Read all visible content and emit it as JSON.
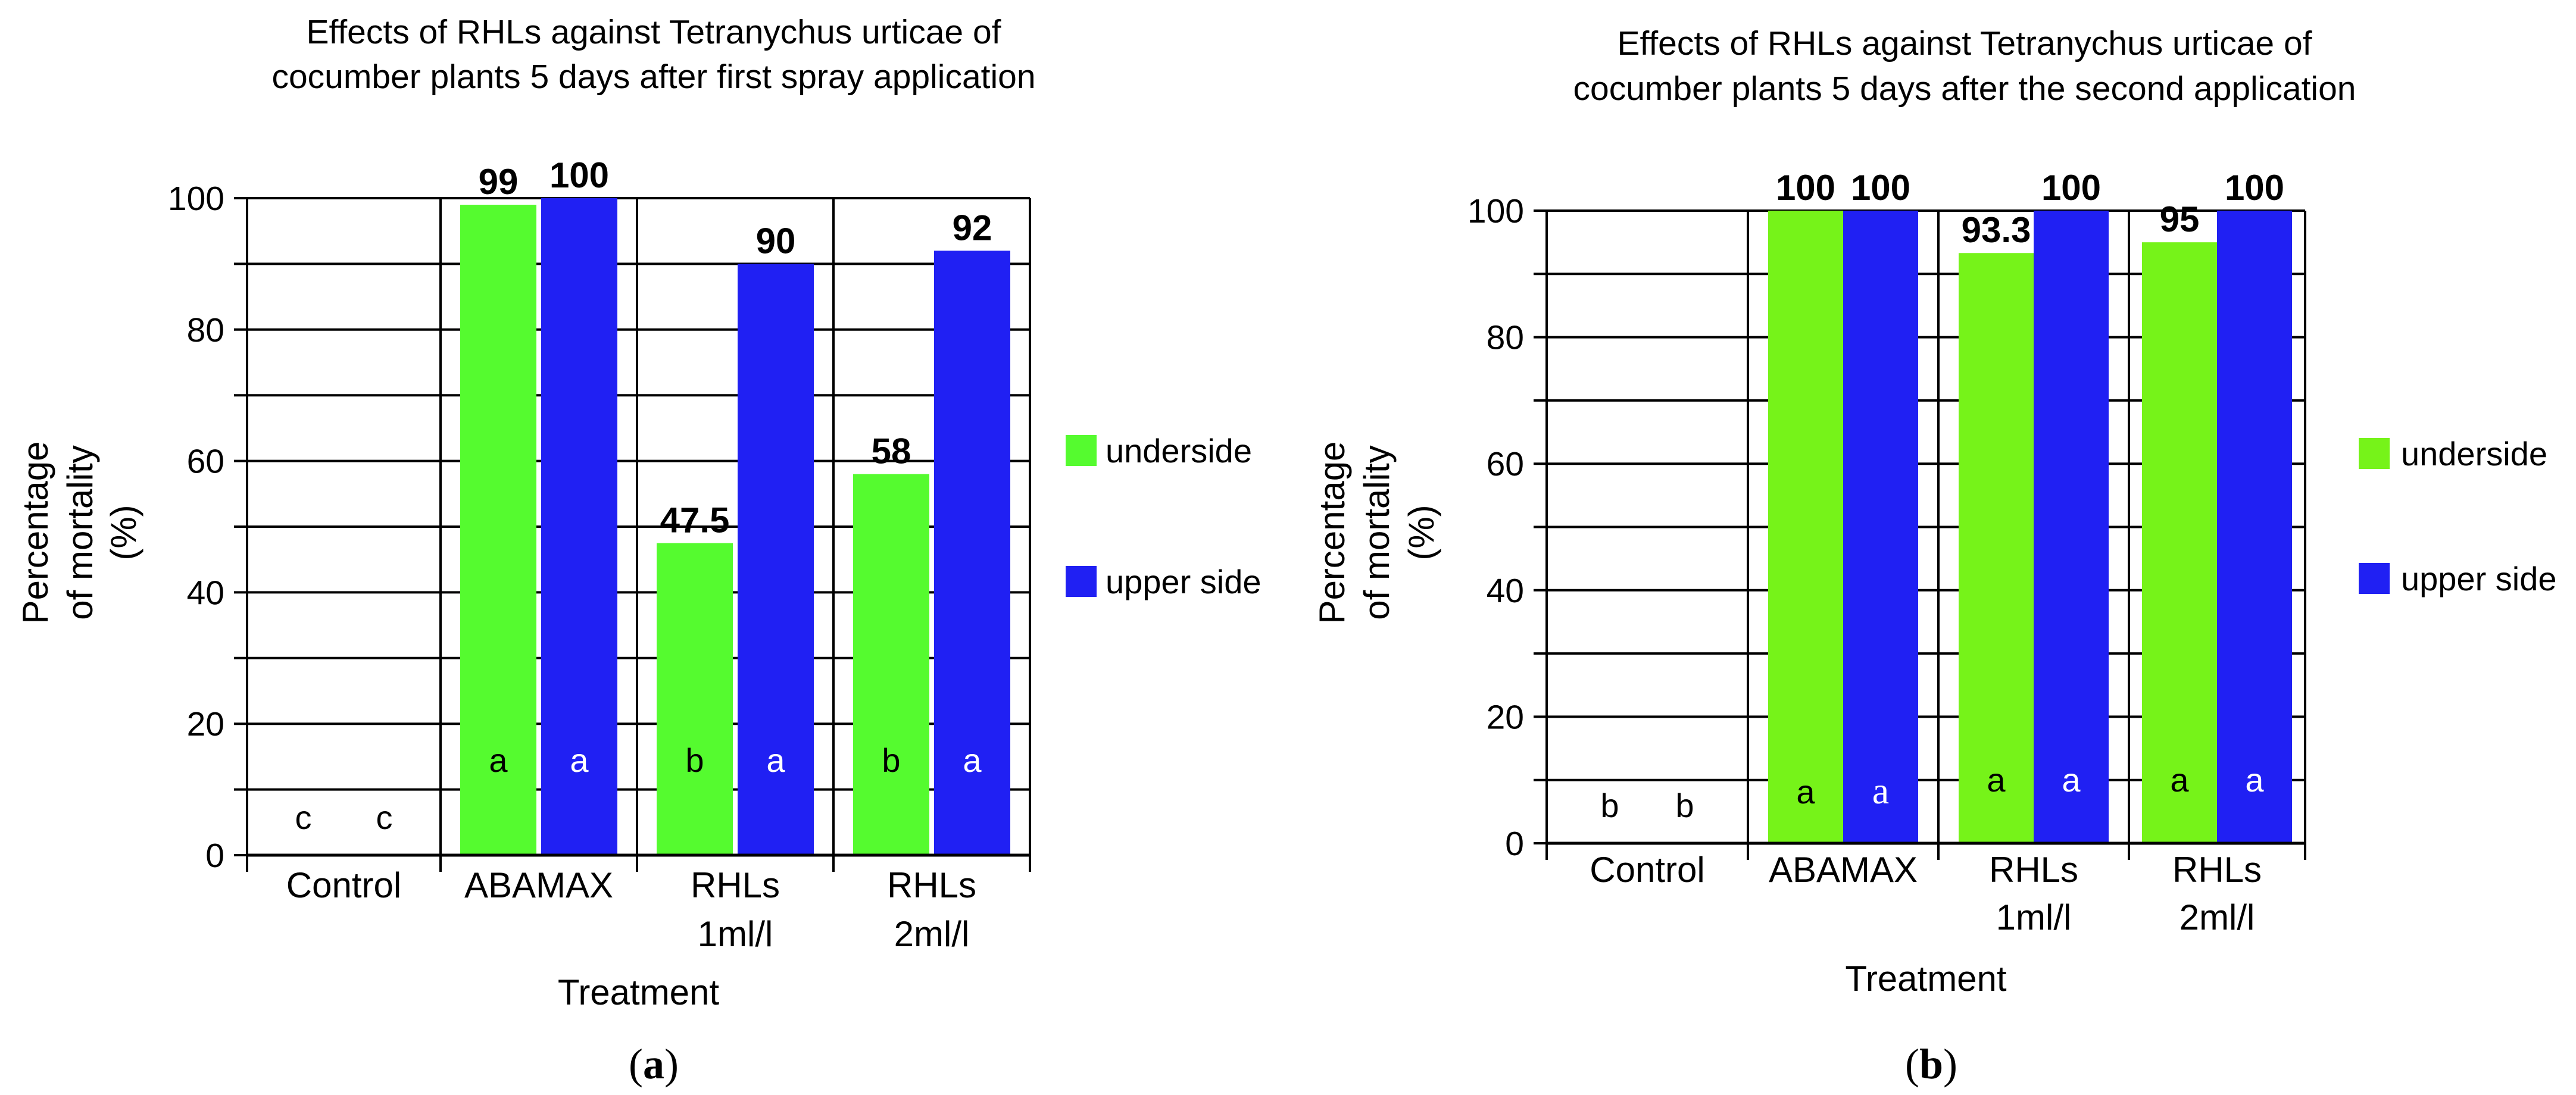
{
  "colors": {
    "underside": "#55fb2f",
    "upper_side": "#2020f3",
    "underside_b": "#76f319",
    "grid": "#000000"
  },
  "chart_data": [
    {
      "id": "a",
      "type": "bar",
      "title": [
        "Effects of RHLs against Tetranychus urticae of",
        "cocumber plants 5 days after first spray application"
      ],
      "xlabel": "Treatment",
      "ylabel": [
        "Percentage",
        "of mortality",
        "(%)"
      ],
      "ylim": [
        0,
        100
      ],
      "yticks": [
        "0",
        "20",
        "40",
        "60",
        "80",
        "100"
      ],
      "categories": [
        [
          "Control"
        ],
        [
          "ABAMAX"
        ],
        [
          "RHLs",
          "1ml/l"
        ],
        [
          "RHLs",
          "2ml/l"
        ]
      ],
      "series": [
        {
          "name": "underside",
          "values": [
            0,
            99,
            47.5,
            58
          ],
          "labels": [
            "",
            "99",
            "47.5",
            "58"
          ],
          "letters": [
            "c",
            "a",
            "b",
            "b"
          ]
        },
        {
          "name": "upper side",
          "values": [
            0,
            100,
            90,
            92
          ],
          "labels": [
            "",
            "100",
            "90",
            "92"
          ],
          "letters": [
            "c",
            "a",
            "a",
            "a"
          ]
        }
      ],
      "legend_position": "right",
      "caption": "a"
    },
    {
      "id": "b",
      "type": "bar",
      "title": [
        "Effects of RHLs against Tetranychus urticae of",
        "cocumber plants 5 days after the second application"
      ],
      "xlabel": "Treatment",
      "ylabel": [
        "Percentage",
        "of mortality",
        "(%)"
      ],
      "ylim": [
        0,
        100
      ],
      "yticks": [
        "0",
        "20",
        "40",
        "60",
        "80",
        "100"
      ],
      "categories": [
        [
          "Control"
        ],
        [
          "ABAMAX"
        ],
        [
          "RHLs",
          "1ml/l"
        ],
        [
          "RHLs",
          "2ml/l"
        ]
      ],
      "series": [
        {
          "name": "underside",
          "values": [
            0,
            100,
            93.3,
            95
          ],
          "labels": [
            "",
            "100",
            "93.3",
            "95"
          ],
          "letters": [
            "b",
            "a",
            "a",
            "a"
          ]
        },
        {
          "name": "upper side",
          "values": [
            0,
            100,
            100,
            100
          ],
          "labels": [
            "",
            "100",
            "100",
            "100"
          ],
          "letters": [
            "b",
            "a",
            "a",
            "a"
          ]
        }
      ],
      "legend_position": "right",
      "caption": "b"
    }
  ]
}
